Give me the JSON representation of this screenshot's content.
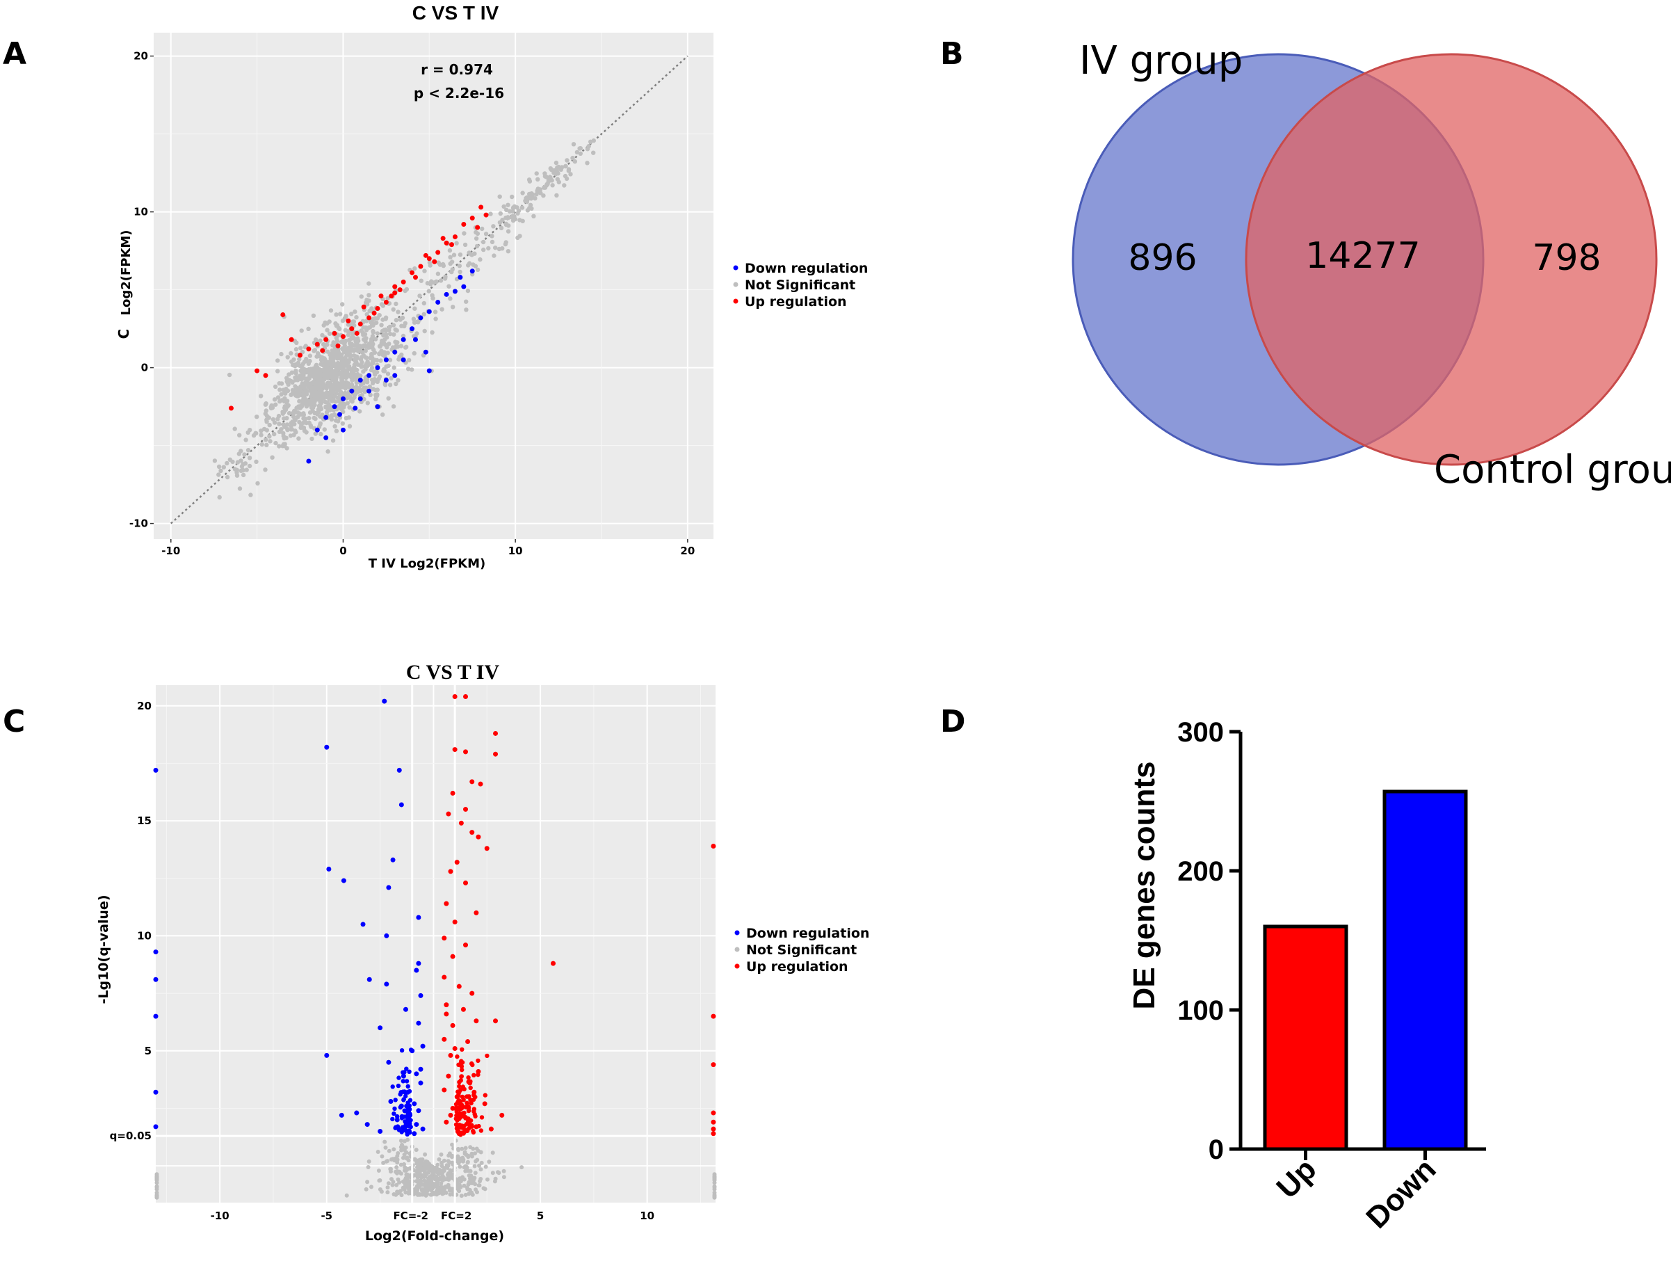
{
  "colors": {
    "down": "#0000ff",
    "not_significant": "#bebebe",
    "up": "#ff0000",
    "panel_bg": "#ebebeb",
    "grid": "#ffffff",
    "venn_iv": "#6677cc",
    "venn_control": "#e06464",
    "bar_up": "#ff0000",
    "bar_down": "#0000ff"
  },
  "panels": {
    "A": {
      "label": "A"
    },
    "B": {
      "label": "B"
    },
    "C": {
      "label": "C"
    },
    "D": {
      "label": "D"
    }
  },
  "chart_data": [
    {
      "id": "A",
      "type": "scatter",
      "title": "C  VS  T IV",
      "xlabel": "T IV   Log2(FPKM)",
      "ylabel_prefix": "C",
      "ylabel": "Log2(FPKM)",
      "xlim": [
        -11,
        21.5
      ],
      "ylim": [
        -11,
        21.5
      ],
      "xticks": [
        "-10",
        "0",
        "10",
        "20"
      ],
      "yticks": [
        "-10",
        "0",
        "10",
        "20"
      ],
      "tick_values": [
        -10,
        0,
        10,
        20
      ],
      "diagonal": {
        "from": [
          -10,
          -10
        ],
        "to": [
          20,
          20
        ]
      },
      "annotation": [
        "r =  0.974",
        "p < 2.2e-16"
      ],
      "legend": {
        "position": "right",
        "entries": [
          {
            "name": "Down regulation",
            "color": "#0000ff"
          },
          {
            "name": "Not Significant",
            "color": "#bebebe"
          },
          {
            "name": "Up regulation",
            "color": "#ff0000"
          }
        ]
      },
      "series": [
        {
          "name": "Up regulation",
          "points": [
            [
              -3.5,
              3.4
            ],
            [
              -3.0,
              1.8
            ],
            [
              -2.5,
              0.8
            ],
            [
              -4.5,
              -0.5
            ],
            [
              -6.5,
              -2.6
            ],
            [
              -2.0,
              1.2
            ],
            [
              -1.5,
              1.5
            ],
            [
              -1.0,
              1.8
            ],
            [
              -0.5,
              2.2
            ],
            [
              0.0,
              2.0
            ],
            [
              0.5,
              2.5
            ],
            [
              1.0,
              2.8
            ],
            [
              1.5,
              3.2
            ],
            [
              2.0,
              3.8
            ],
            [
              2.5,
              4.2
            ],
            [
              3.0,
              4.8
            ],
            [
              3.5,
              5.5
            ],
            [
              4.0,
              6.1
            ],
            [
              4.5,
              6.5
            ],
            [
              5.0,
              7.0
            ],
            [
              5.5,
              7.4
            ],
            [
              6.0,
              8.0
            ],
            [
              6.5,
              8.4
            ],
            [
              7.0,
              9.2
            ],
            [
              7.5,
              9.6
            ],
            [
              8.0,
              10.3
            ],
            [
              8.3,
              9.8
            ],
            [
              7.8,
              9.0
            ],
            [
              -0.3,
              1.4
            ],
            [
              0.8,
              2.2
            ],
            [
              1.8,
              3.5
            ],
            [
              2.8,
              4.6
            ],
            [
              3.3,
              5.0
            ],
            [
              4.2,
              5.8
            ],
            [
              5.3,
              6.8
            ],
            [
              6.3,
              7.9
            ],
            [
              3.0,
              5.2
            ],
            [
              2.2,
              4.6
            ],
            [
              -1.2,
              1.1
            ],
            [
              -5.0,
              -0.2
            ],
            [
              0.3,
              3.0
            ],
            [
              1.2,
              3.9
            ],
            [
              4.8,
              7.2
            ],
            [
              5.8,
              8.3
            ]
          ]
        },
        {
          "name": "Down regulation",
          "points": [
            [
              -2.0,
              -6.0
            ],
            [
              -1.5,
              -4.0
            ],
            [
              -1.0,
              -3.2
            ],
            [
              -0.5,
              -2.5
            ],
            [
              0.0,
              -2.0
            ],
            [
              0.5,
              -1.5
            ],
            [
              1.0,
              -0.8
            ],
            [
              1.5,
              -0.5
            ],
            [
              2.0,
              0.0
            ],
            [
              2.5,
              0.5
            ],
            [
              3.0,
              1.0
            ],
            [
              3.5,
              1.8
            ],
            [
              4.0,
              2.5
            ],
            [
              4.5,
              3.2
            ],
            [
              5.0,
              3.6
            ],
            [
              5.5,
              4.2
            ],
            [
              6.0,
              4.7
            ],
            [
              6.5,
              4.9
            ],
            [
              7.0,
              5.2
            ],
            [
              7.5,
              6.2
            ],
            [
              4.8,
              1.0
            ],
            [
              5.0,
              -0.2
            ],
            [
              3.0,
              -0.5
            ],
            [
              2.0,
              -2.5
            ],
            [
              1.0,
              -2.0
            ],
            [
              0.0,
              -4.0
            ],
            [
              -1.0,
              -4.5
            ],
            [
              1.5,
              -1.5
            ],
            [
              2.5,
              -0.8
            ],
            [
              3.5,
              0.5
            ],
            [
              4.2,
              1.8
            ],
            [
              6.8,
              5.8
            ],
            [
              -0.2,
              -3.0
            ],
            [
              0.7,
              -2.6
            ]
          ]
        },
        {
          "name": "Not Significant",
          "generated": true,
          "count": 1400,
          "along_diagonal": [
            -7,
            14
          ]
        }
      ]
    },
    {
      "id": "B",
      "type": "venn",
      "sets": [
        {
          "name": "IV group",
          "only": 896
        },
        {
          "name": "Control  group",
          "only": 798
        }
      ],
      "intersection": 14277,
      "values_text": [
        "896",
        "14277",
        "798"
      ]
    },
    {
      "id": "C",
      "type": "scatter",
      "subtype": "volcano",
      "title": "C  VS  T  IV",
      "xlabel": "Log2(Fold-change)",
      "ylabel": "-Lg10(q-value)",
      "xlim": [
        -13,
        13.2
      ],
      "ylim": [
        -1.6,
        20.9
      ],
      "xticks": [
        "-10",
        "-5",
        "5",
        "10"
      ],
      "xtick_values": [
        -10,
        -5,
        5,
        10
      ],
      "yticks": [
        "5",
        "10",
        "15",
        "20"
      ],
      "ytick_values": [
        5,
        10,
        15,
        20
      ],
      "threshold_labels": [
        "FC=-2",
        "FC=2",
        "q=0.05"
      ],
      "thresholds": {
        "fc_neg": -1,
        "fc_pos": 1,
        "q": 0.05,
        "q_neglog": 1.3
      },
      "legend": {
        "position": "right",
        "entries": [
          {
            "name": "Down regulation",
            "color": "#0000ff"
          },
          {
            "name": "Not Significant",
            "color": "#bebebe"
          },
          {
            "name": "Up regulation",
            "color": "#ff0000"
          }
        ]
      },
      "series": [
        {
          "name": "Down regulation",
          "points": [
            [
              -2.3,
              20.2
            ],
            [
              -5.0,
              18.2
            ],
            [
              -1.6,
              17.2
            ],
            [
              -4.9,
              12.9
            ],
            [
              -1.9,
              13.3
            ],
            [
              -1.5,
              15.7
            ],
            [
              -4.2,
              12.4
            ],
            [
              -2.1,
              12.1
            ],
            [
              -3.3,
              10.5
            ],
            [
              -2.2,
              10.0
            ],
            [
              -0.7,
              10.8
            ],
            [
              -3.0,
              8.1
            ],
            [
              -2.2,
              7.9
            ],
            [
              -0.7,
              8.8
            ],
            [
              -0.8,
              8.5
            ],
            [
              -1.3,
              6.8
            ],
            [
              -2.5,
              6.0
            ],
            [
              -0.6,
              7.4
            ],
            [
              -5.0,
              4.8
            ],
            [
              -2.1,
              4.5
            ],
            [
              -4.3,
              2.2
            ],
            [
              -3.6,
              2.3
            ],
            [
              -0.5,
              5.2
            ],
            [
              -0.8,
              4.0
            ],
            [
              -1.2,
              3.2
            ],
            [
              -0.6,
              3.6
            ],
            [
              -0.9,
              2.7
            ],
            [
              -1.1,
              2.2
            ],
            [
              -1.7,
              2.0
            ],
            [
              -0.8,
              1.8
            ],
            [
              -0.5,
              1.6
            ],
            [
              -1.2,
              1.5
            ],
            [
              -2.5,
              1.5
            ],
            [
              -3.1,
              1.8
            ],
            [
              -13,
              17.2
            ],
            [
              -13,
              9.3
            ],
            [
              -13,
              8.1
            ],
            [
              -13,
              6.5
            ],
            [
              -13,
              3.2
            ],
            [
              -13,
              1.7
            ],
            [
              -0.7,
              6.2
            ],
            [
              -1.0,
              5.0
            ],
            [
              -0.6,
              4.2
            ],
            [
              -1.5,
              2.6
            ],
            [
              -0.9,
              1.4
            ],
            [
              -2.0,
              2.8
            ],
            [
              -0.7,
              2.4
            ],
            [
              -1.4,
              3.9
            ]
          ]
        },
        {
          "name": "Up regulation",
          "points": [
            [
              1.0,
              20.4
            ],
            [
              1.5,
              20.4
            ],
            [
              2.9,
              18.8
            ],
            [
              1.0,
              18.1
            ],
            [
              1.5,
              18.0
            ],
            [
              2.9,
              17.9
            ],
            [
              1.8,
              16.7
            ],
            [
              2.2,
              16.6
            ],
            [
              0.9,
              16.2
            ],
            [
              1.5,
              15.5
            ],
            [
              0.7,
              15.3
            ],
            [
              1.3,
              14.9
            ],
            [
              1.8,
              14.5
            ],
            [
              2.1,
              14.3
            ],
            [
              2.5,
              13.8
            ],
            [
              1.1,
              13.2
            ],
            [
              0.8,
              12.8
            ],
            [
              1.5,
              12.3
            ],
            [
              2.0,
              11.0
            ],
            [
              0.6,
              11.4
            ],
            [
              1.0,
              10.6
            ],
            [
              0.5,
              9.9
            ],
            [
              1.5,
              9.6
            ],
            [
              0.9,
              9.1
            ],
            [
              5.6,
              8.8
            ],
            [
              0.5,
              8.2
            ],
            [
              1.2,
              7.8
            ],
            [
              1.8,
              7.5
            ],
            [
              0.6,
              7.0
            ],
            [
              1.4,
              6.8
            ],
            [
              2.0,
              6.3
            ],
            [
              2.9,
              6.3
            ],
            [
              0.9,
              6.1
            ],
            [
              0.5,
              5.5
            ],
            [
              1.6,
              5.4
            ],
            [
              0.8,
              4.8
            ],
            [
              1.3,
              4.5
            ],
            [
              2.1,
              4.1
            ],
            [
              0.7,
              3.9
            ],
            [
              1.7,
              3.6
            ],
            [
              0.5,
              3.3
            ],
            [
              1.1,
              3.0
            ],
            [
              2.4,
              2.7
            ],
            [
              0.9,
              2.5
            ],
            [
              3.2,
              2.2
            ],
            [
              1.5,
              2.1
            ],
            [
              0.6,
              1.9
            ],
            [
              2.0,
              1.7
            ],
            [
              2.7,
              1.6
            ],
            [
              1.2,
              1.4
            ],
            [
              13.1,
              13.9
            ],
            [
              13.1,
              6.5
            ],
            [
              13.1,
              4.4
            ],
            [
              13.1,
              2.3
            ],
            [
              13.1,
              1.9
            ],
            [
              13.1,
              1.6
            ],
            [
              13.1,
              1.4
            ],
            [
              0.6,
              6.6
            ],
            [
              1.0,
              5.1
            ],
            [
              1.9,
              3.2
            ],
            [
              0.8,
              2.2
            ]
          ]
        },
        {
          "name": "Not Significant",
          "generated": true,
          "count": 520,
          "v_shape": true
        }
      ]
    },
    {
      "id": "D",
      "type": "bar",
      "categories": [
        "Up",
        "Down"
      ],
      "values": [
        160,
        257
      ],
      "ylabel": "DE genes counts",
      "ylim": [
        0,
        300
      ],
      "yticks": [
        "0",
        "100",
        "200",
        "300"
      ],
      "ytick_values": [
        0,
        100,
        200,
        300
      ],
      "bar_colors": [
        "#ff0000",
        "#0000ff"
      ]
    }
  ]
}
